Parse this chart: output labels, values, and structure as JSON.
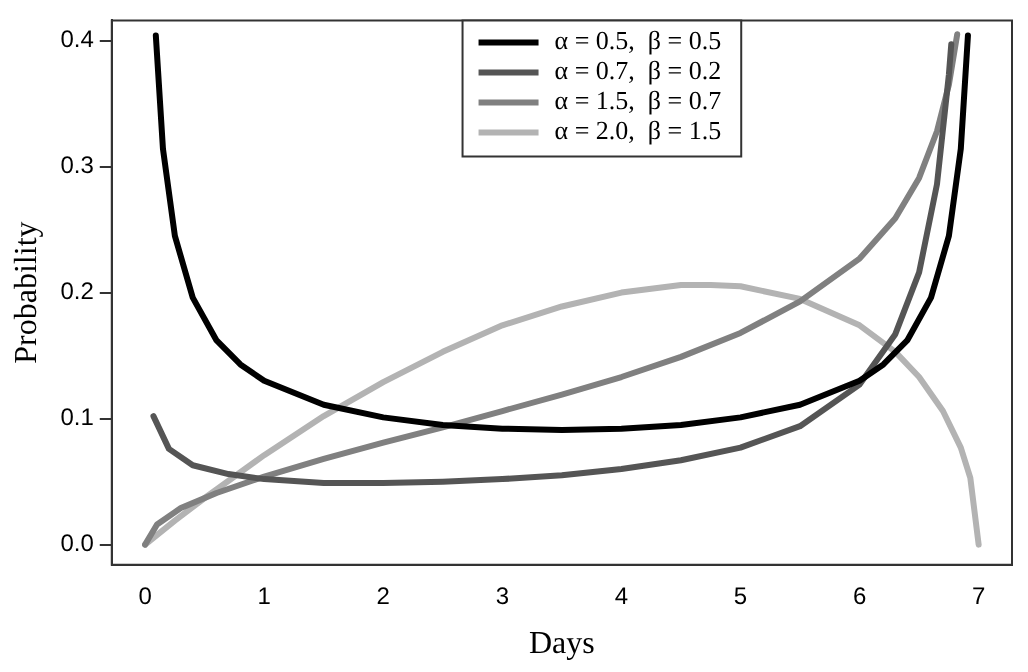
{
  "chart_data": {
    "type": "line",
    "xlabel": "Days",
    "ylabel": "Probability",
    "xlim": [
      -0.28,
      7.28
    ],
    "ylim": [
      -0.016,
      0.416
    ],
    "xticks": [
      0,
      1,
      2,
      3,
      4,
      5,
      6,
      7
    ],
    "yticks": [
      {
        "value": 0,
        "label": "0.0"
      },
      {
        "value": 0.1,
        "label": "0.1"
      },
      {
        "value": 0.2,
        "label": "0.2"
      },
      {
        "value": 0.3,
        "label": "0.3"
      },
      {
        "value": 0.4,
        "label": "0.4"
      }
    ],
    "grid": false,
    "legend": "top",
    "marker": "none",
    "line_style": "solid",
    "series": [
      {
        "name": "α = 0.5,  β = 0.5",
        "color": "#000000",
        "x": [
          0.09,
          0.15,
          0.25,
          0.4,
          0.6,
          0.8,
          1,
          1.5,
          2,
          2.5,
          3,
          3.5,
          4,
          4.5,
          5,
          5.5,
          6,
          6.2,
          6.4,
          6.6,
          6.75,
          6.85,
          6.91
        ],
        "values": [
          0.404,
          0.314,
          0.245,
          0.196,
          0.162,
          0.143,
          0.13,
          0.111,
          0.101,
          0.095,
          0.092,
          0.091,
          0.092,
          0.095,
          0.101,
          0.111,
          0.13,
          0.143,
          0.162,
          0.196,
          0.245,
          0.314,
          0.404
        ]
      },
      {
        "name": "α = 0.7,  β = 0.2",
        "color": "#555555",
        "x": [
          0.07,
          0.2,
          0.4,
          0.7,
          1,
          1.5,
          2,
          2.5,
          3,
          3.5,
          4,
          4.5,
          5,
          5.5,
          6,
          6.3,
          6.5,
          6.65,
          6.75,
          6.77
        ],
        "values": [
          0.102,
          0.076,
          0.063,
          0.056,
          0.052,
          0.049,
          0.049,
          0.05,
          0.052,
          0.055,
          0.06,
          0.067,
          0.077,
          0.094,
          0.127,
          0.167,
          0.216,
          0.286,
          0.373,
          0.397
        ]
      },
      {
        "name": "α = 1.5,  β = 0.7",
        "color": "#808080",
        "x": [
          0,
          0.1,
          0.3,
          0.6,
          1,
          1.5,
          2,
          2.5,
          3,
          3.5,
          4,
          4.5,
          5,
          5.5,
          6,
          6.3,
          6.5,
          6.65,
          6.75,
          6.82
        ],
        "values": [
          0,
          0.016,
          0.029,
          0.041,
          0.054,
          0.068,
          0.081,
          0.093,
          0.106,
          0.119,
          0.133,
          0.149,
          0.168,
          0.193,
          0.227,
          0.259,
          0.291,
          0.328,
          0.365,
          0.405
        ]
      },
      {
        "name": "α = 2.0,  β = 1.5",
        "color": "#b3b3b3",
        "x": [
          0,
          0.25,
          0.5,
          1,
          1.5,
          2,
          2.5,
          3,
          3.5,
          4,
          4.5,
          4.75,
          5,
          5.5,
          6,
          6.3,
          6.5,
          6.7,
          6.85,
          6.93,
          7
        ],
        "values": [
          0,
          0.019,
          0.037,
          0.071,
          0.102,
          0.129,
          0.153,
          0.174,
          0.189,
          0.2,
          0.206,
          0.206,
          0.205,
          0.195,
          0.174,
          0.153,
          0.133,
          0.106,
          0.077,
          0.053,
          0
        ]
      }
    ]
  }
}
